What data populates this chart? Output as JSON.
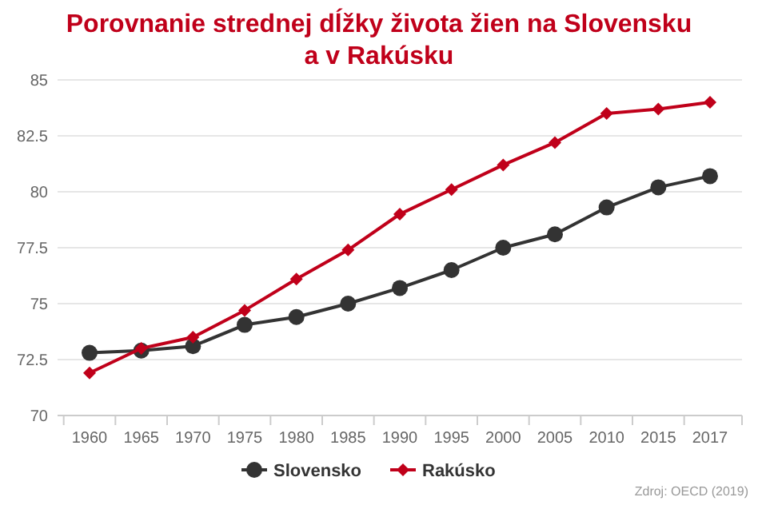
{
  "chart_data": {
    "type": "line",
    "title": "Porovnanie strednej dĺžky života žien na Slovensku a v Rakúsku",
    "categories": [
      "1960",
      "1965",
      "1970",
      "1975",
      "1980",
      "1985",
      "1990",
      "1995",
      "2000",
      "2005",
      "2010",
      "2015",
      "2017"
    ],
    "series": [
      {
        "name": "Slovensko",
        "color": "#333333",
        "marker": "circle",
        "values": [
          72.8,
          72.9,
          73.1,
          74.05,
          74.4,
          75.0,
          75.7,
          76.5,
          77.5,
          78.1,
          79.3,
          80.2,
          80.7
        ]
      },
      {
        "name": "Rakúsko",
        "color": "#c0001a",
        "marker": "diamond",
        "values": [
          71.9,
          73.0,
          73.5,
          74.7,
          76.1,
          77.4,
          79.0,
          80.1,
          81.2,
          82.2,
          83.5,
          83.7,
          84.0
        ]
      }
    ],
    "ylim": [
      70,
      85
    ],
    "yticks": [
      70,
      72.5,
      75,
      77.5,
      80,
      82.5,
      85
    ],
    "grid": "y",
    "legend": "bottom",
    "annotations": [
      "Zdroj: OECD (2019)"
    ]
  }
}
